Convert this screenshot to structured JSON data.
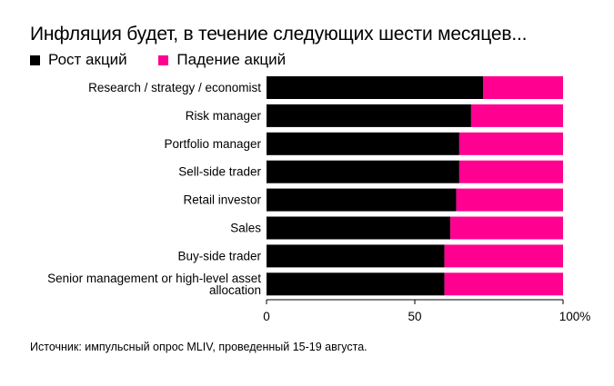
{
  "title": "Инфляция будет, в течение следующих шести месяцев...",
  "legend": [
    {
      "label": "Рост акций",
      "color": "#000000"
    },
    {
      "label": "Падение акций",
      "color": "#ff0090"
    }
  ],
  "source": "Источник: импульсный опрос MLIV, проведенный 15-19 августа.",
  "chart_data": {
    "type": "bar",
    "orientation": "horizontal",
    "stacked": true,
    "title": "Инфляция будет, в течение следующих шести месяцев...",
    "categories": [
      "Research / strategy / economist",
      "Risk manager",
      "Portfolio manager",
      "Sell-side trader",
      "Retail investor",
      "Sales",
      "Buy-side trader",
      "Senior management or high-level asset allocation"
    ],
    "category_lines": [
      [
        "Research / strategy / economist"
      ],
      [
        "Risk manager"
      ],
      [
        "Portfolio manager"
      ],
      [
        "Sell-side trader"
      ],
      [
        "Retail investor"
      ],
      [
        "Sales"
      ],
      [
        "Buy-side trader"
      ],
      [
        "Senior management or high-level asset",
        "allocation"
      ]
    ],
    "series": [
      {
        "name": "Рост акций",
        "color": "#000000",
        "values": [
          73,
          69,
          65,
          65,
          64,
          62,
          60,
          60
        ]
      },
      {
        "name": "Падение акций",
        "color": "#ff0090",
        "values": [
          27,
          31,
          35,
          35,
          36,
          38,
          40,
          40
        ]
      }
    ],
    "xlim": [
      0,
      100
    ],
    "xticks": [
      "0",
      "50",
      "100%"
    ],
    "xtick_values": [
      0,
      50,
      100
    ],
    "xlabel": "",
    "ylabel": ""
  }
}
